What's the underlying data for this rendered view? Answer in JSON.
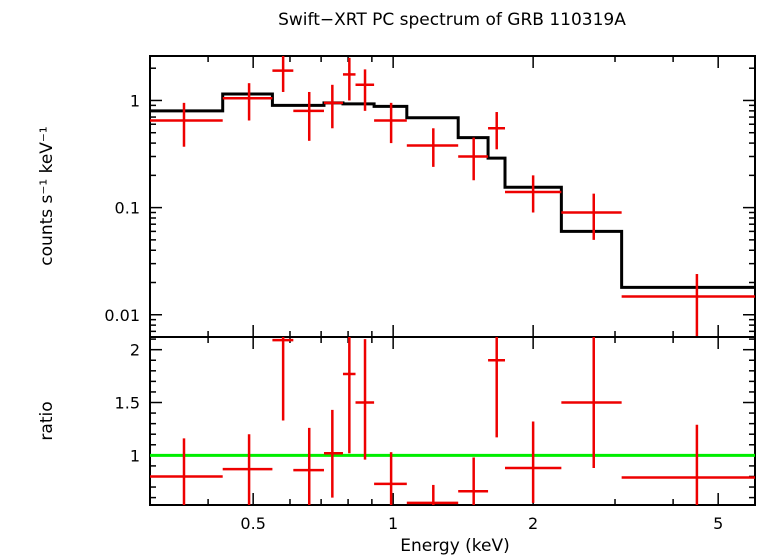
{
  "chart_data": {
    "type": "scatter",
    "title": "Swift−XRT PC spectrum of GRB 110319A",
    "xlabel": "Energy (keV)",
    "xscale": "log",
    "xlim": [
      0.3,
      6.0
    ],
    "x_ticks": [
      {
        "value": 0.5,
        "label": "0.5"
      },
      {
        "value": 1,
        "label": "1"
      },
      {
        "value": 2,
        "label": "2"
      },
      {
        "value": 5,
        "label": "5"
      }
    ],
    "panels": [
      {
        "name": "spectrum",
        "ylabel": "counts s⁻¹ keV⁻¹",
        "yscale": "log",
        "ylim": [
          0.0062,
          2.6
        ],
        "y_ticks": [
          {
            "value": 1,
            "label": "1"
          },
          {
            "value": 0.1,
            "label": "0.1"
          },
          {
            "value": 0.01,
            "label": "0.01"
          }
        ],
        "data_points": [
          {
            "x": 0.355,
            "xlo": 0.3,
            "xhi": 0.43,
            "y": 0.65,
            "ylo": 0.37,
            "yhi": 0.95
          },
          {
            "x": 0.49,
            "xlo": 0.43,
            "xhi": 0.55,
            "y": 1.05,
            "ylo": 0.65,
            "yhi": 1.45
          },
          {
            "x": 0.58,
            "xlo": 0.55,
            "xhi": 0.61,
            "y": 1.9,
            "ylo": 1.2,
            "yhi": 2.6
          },
          {
            "x": 0.66,
            "xlo": 0.61,
            "xhi": 0.71,
            "y": 0.8,
            "ylo": 0.42,
            "yhi": 1.2
          },
          {
            "x": 0.74,
            "xlo": 0.71,
            "xhi": 0.78,
            "y": 0.95,
            "ylo": 0.55,
            "yhi": 1.4
          },
          {
            "x": 0.805,
            "xlo": 0.78,
            "xhi": 0.83,
            "y": 1.75,
            "ylo": 1.0,
            "yhi": 2.5
          },
          {
            "x": 0.87,
            "xlo": 0.83,
            "xhi": 0.91,
            "y": 1.4,
            "ylo": 0.8,
            "yhi": 1.95
          },
          {
            "x": 0.99,
            "xlo": 0.91,
            "xhi": 1.07,
            "y": 0.65,
            "ylo": 0.4,
            "yhi": 0.95
          },
          {
            "x": 1.22,
            "xlo": 1.07,
            "xhi": 1.38,
            "y": 0.38,
            "ylo": 0.24,
            "yhi": 0.55
          },
          {
            "x": 1.49,
            "xlo": 1.38,
            "xhi": 1.6,
            "y": 0.3,
            "ylo": 0.18,
            "yhi": 0.45
          },
          {
            "x": 1.67,
            "xlo": 1.6,
            "xhi": 1.74,
            "y": 0.55,
            "ylo": 0.35,
            "yhi": 0.78
          },
          {
            "x": 2.0,
            "xlo": 1.74,
            "xhi": 2.3,
            "y": 0.14,
            "ylo": 0.09,
            "yhi": 0.2
          },
          {
            "x": 2.7,
            "xlo": 2.3,
            "xhi": 3.1,
            "y": 0.09,
            "ylo": 0.05,
            "yhi": 0.135
          },
          {
            "x": 4.5,
            "xlo": 3.1,
            "xhi": 6.0,
            "y": 0.0148,
            "ylo": 0.0062,
            "yhi": 0.024
          }
        ],
        "model_steps": [
          {
            "xlo": 0.3,
            "xhi": 0.43,
            "y": 0.8
          },
          {
            "xlo": 0.43,
            "xhi": 0.55,
            "y": 1.15
          },
          {
            "xlo": 0.55,
            "xhi": 0.71,
            "y": 0.9
          },
          {
            "xlo": 0.71,
            "xhi": 0.78,
            "y": 0.95
          },
          {
            "xlo": 0.78,
            "xhi": 0.91,
            "y": 0.93
          },
          {
            "xlo": 0.91,
            "xhi": 1.07,
            "y": 0.88
          },
          {
            "xlo": 1.07,
            "xhi": 1.38,
            "y": 0.69
          },
          {
            "xlo": 1.38,
            "xhi": 1.6,
            "y": 0.45
          },
          {
            "xlo": 1.6,
            "xhi": 1.74,
            "y": 0.29
          },
          {
            "xlo": 1.74,
            "xhi": 2.3,
            "y": 0.155
          },
          {
            "xlo": 2.3,
            "xhi": 3.1,
            "y": 0.06
          },
          {
            "xlo": 3.1,
            "xhi": 6.0,
            "y": 0.018
          }
        ]
      },
      {
        "name": "ratio",
        "ylabel": "ratio",
        "yscale": "linear",
        "ylim": [
          0.53,
          2.12
        ],
        "y_ticks": [
          {
            "value": 1,
            "label": "1"
          },
          {
            "value": 1.5,
            "label": "1.5"
          },
          {
            "value": 2,
            "label": "2"
          }
        ],
        "reference_line": 1,
        "data_points": [
          {
            "x": 0.355,
            "xlo": 0.3,
            "xhi": 0.43,
            "y": 0.8,
            "ylo": 0.45,
            "yhi": 1.16
          },
          {
            "x": 0.49,
            "xlo": 0.43,
            "xhi": 0.55,
            "y": 0.87,
            "ylo": 0.53,
            "yhi": 1.2
          },
          {
            "x": 0.58,
            "xlo": 0.55,
            "xhi": 0.61,
            "y": 2.09,
            "ylo": 1.33,
            "yhi": 2.12
          },
          {
            "x": 0.66,
            "xlo": 0.61,
            "xhi": 0.71,
            "y": 0.86,
            "ylo": 0.46,
            "yhi": 1.26
          },
          {
            "x": 0.74,
            "xlo": 0.71,
            "xhi": 0.78,
            "y": 1.02,
            "ylo": 0.6,
            "yhi": 1.43
          },
          {
            "x": 0.805,
            "xlo": 0.78,
            "xhi": 0.83,
            "y": 1.77,
            "ylo": 1.02,
            "yhi": 2.12
          },
          {
            "x": 0.87,
            "xlo": 0.83,
            "xhi": 0.91,
            "y": 1.5,
            "ylo": 0.96,
            "yhi": 2.1
          },
          {
            "x": 0.99,
            "xlo": 0.91,
            "xhi": 1.07,
            "y": 0.73,
            "ylo": 0.45,
            "yhi": 1.03
          },
          {
            "x": 1.22,
            "xlo": 1.07,
            "xhi": 1.38,
            "y": 0.55,
            "ylo": 0.45,
            "yhi": 0.72
          },
          {
            "x": 1.49,
            "xlo": 1.38,
            "xhi": 1.6,
            "y": 0.66,
            "ylo": 0.45,
            "yhi": 0.98
          },
          {
            "x": 1.67,
            "xlo": 1.6,
            "xhi": 1.74,
            "y": 1.9,
            "ylo": 1.17,
            "yhi": 2.12
          },
          {
            "x": 2.0,
            "xlo": 1.74,
            "xhi": 2.3,
            "y": 0.88,
            "ylo": 0.55,
            "yhi": 1.32
          },
          {
            "x": 2.7,
            "xlo": 2.3,
            "xhi": 3.1,
            "y": 1.5,
            "ylo": 0.88,
            "yhi": 2.12
          },
          {
            "x": 4.5,
            "xlo": 3.1,
            "xhi": 6.0,
            "y": 0.79,
            "ylo": 0.45,
            "yhi": 1.29
          }
        ]
      }
    ],
    "colors": {
      "data": "#ee0000",
      "model": "#000000",
      "reference": "#00ee00"
    }
  }
}
